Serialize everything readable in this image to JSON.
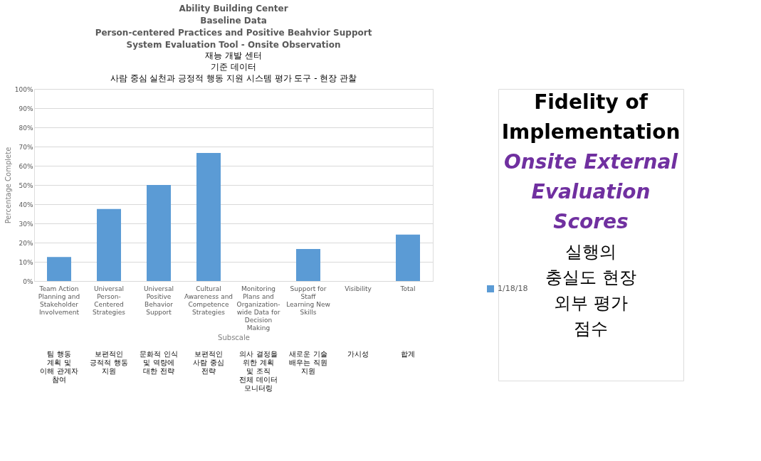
{
  "chart_data": {
    "type": "bar",
    "title": "Ability Building Center\nBaseline Data\nPerson-centered Practices and Positive Beahvior Support\nSystem Evaluation Tool - Onsite Observation",
    "subtitle": "재능 개발 센터\n기준 데이터\n사람 중심 실천과 긍정적 행동 지원 시스템 평가 도구 - 현장 관찰",
    "xlabel": "Subscale",
    "ylabel": "Percentage Complete",
    "categories": [
      "Team Action Planning and Stakeholder Involvement",
      "Universal Person-Centered Strategies",
      "Universal Positive Behavior Support",
      "Cultural Awareness and Competence Strategies",
      "Monitoring Plans and Organization-wide Data for Decision Making",
      "Support for Staff Learning New Skills",
      "Visibility",
      "Total"
    ],
    "series": [
      {
        "name": "1/18/18",
        "color": "#5b9bd5",
        "values": [
          12.5,
          37.5,
          50,
          66.7,
          0,
          16.7,
          0,
          24.2
        ]
      }
    ],
    "ylim": [
      0,
      100
    ],
    "yticks": [
      {
        "value": 0,
        "label": "0%"
      },
      {
        "value": 10,
        "label": "10%"
      },
      {
        "value": 20,
        "label": "20%"
      },
      {
        "value": 30,
        "label": "30%"
      },
      {
        "value": 40,
        "label": "40%"
      },
      {
        "value": 50,
        "label": "50%"
      },
      {
        "value": 60,
        "label": "60%"
      },
      {
        "value": 70,
        "label": "70%"
      },
      {
        "value": 80,
        "label": "80%"
      },
      {
        "value": 90,
        "label": "90%"
      },
      {
        "value": 100,
        "label": "100%"
      }
    ],
    "grid": "y",
    "legend": "right",
    "annotations": [
      "팀 행동 계획 및 이해 관계자 참여",
      "보편적인 긍적적 행동 지원",
      "문화적 인식 및 역량에 대한 전략",
      "보편적인 사람 중심 전략",
      "의사 결정을 위한 계획 및 조직 전체 데이터 모니터링",
      "새로운 기술 배우는 직원 지원",
      "가시성",
      "합계",
      "Fidelity of Implementation",
      "Onsite External Evaluation Scores",
      "실행의 충실도 현장 외부 평가 점수"
    ]
  }
}
